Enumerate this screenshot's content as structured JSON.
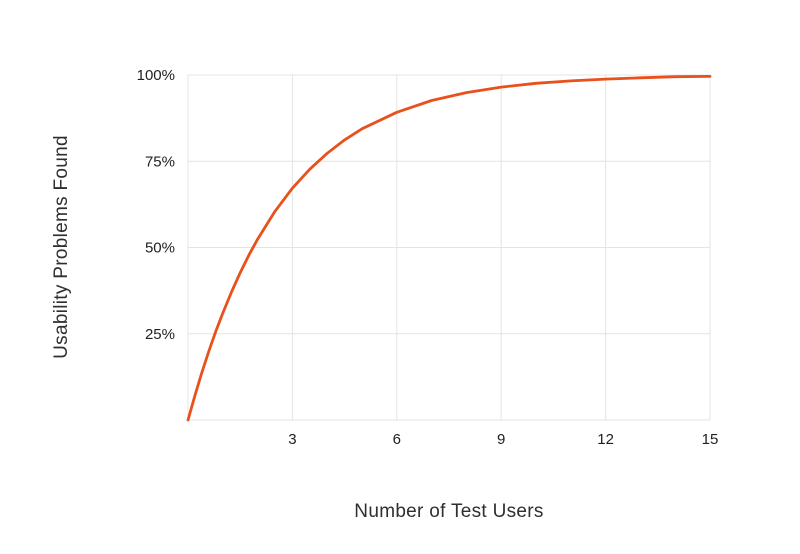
{
  "chart_data": {
    "type": "line",
    "xlabel": "Number of Test Users",
    "ylabel": "Usability Problems Found",
    "xlim": [
      0,
      15
    ],
    "ylim": [
      0,
      100
    ],
    "x_ticks": [
      3,
      6,
      9,
      12,
      15
    ],
    "y_ticks": [
      25,
      50,
      75,
      100
    ],
    "y_tick_labels": [
      "25%",
      "50%",
      "75%",
      "100%"
    ],
    "grid": true,
    "legend": "none",
    "line_color": "#e8511c",
    "grid_color": "#e4e4e4",
    "tick_text_color": "#212121",
    "series": [
      {
        "name": "Usability problems found",
        "formula": "y = 100 * (1 - 0.69^x)",
        "x": [
          0,
          0.2,
          0.4,
          0.6,
          0.8,
          1,
          1.25,
          1.5,
          1.75,
          2,
          2.5,
          3,
          3.5,
          4,
          4.5,
          5,
          6,
          7,
          8,
          9,
          10,
          11,
          12,
          13,
          14,
          15
        ],
        "y": [
          0,
          7.2,
          13.8,
          20.0,
          25.7,
          31.0,
          37.1,
          42.7,
          47.8,
          52.4,
          60.5,
          67.2,
          72.7,
          77.3,
          81.2,
          84.4,
          89.2,
          92.6,
          94.9,
          96.5,
          97.6,
          98.3,
          98.8,
          99.2,
          99.5,
          99.6
        ]
      }
    ]
  }
}
